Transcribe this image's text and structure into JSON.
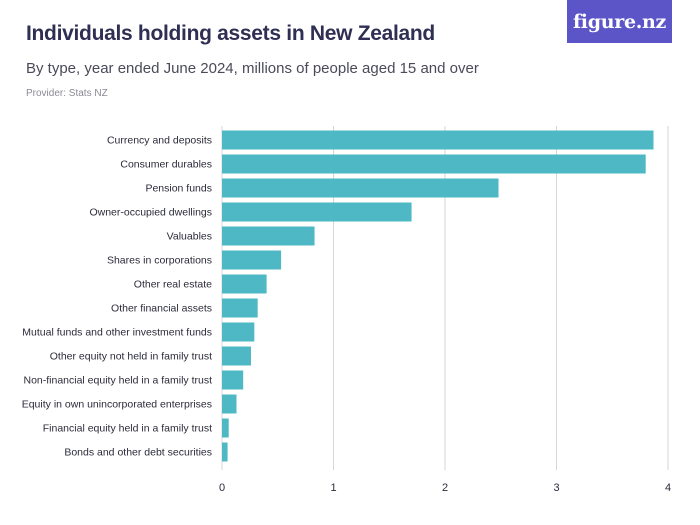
{
  "header": {
    "title": "Individuals holding assets in New Zealand",
    "subtitle": "By type, year ended June 2024, millions of people aged 15 and over",
    "provider": "Provider: Stats NZ"
  },
  "logo": {
    "text": "figure.nz",
    "color": "#5b55c7"
  },
  "chart_data": {
    "type": "bar",
    "orientation": "horizontal",
    "categories": [
      "Currency and deposits",
      "Consumer durables",
      "Pension funds",
      "Owner-occupied dwellings",
      "Valuables",
      "Shares in corporations",
      "Other real estate",
      "Other financial assets",
      "Mutual funds and other investment funds",
      "Other equity not held in family trust",
      "Non-financial equity held in a family trust",
      "Equity in own unincorporated enterprises",
      "Financial equity held in a family trust",
      "Bonds and other debt securities"
    ],
    "values": [
      3.87,
      3.8,
      2.48,
      1.7,
      0.83,
      0.53,
      0.4,
      0.32,
      0.29,
      0.26,
      0.19,
      0.13,
      0.06,
      0.05
    ],
    "xlim": [
      0,
      4
    ],
    "xticks": [
      0,
      1,
      2,
      3,
      4
    ],
    "xtick_labels": [
      "0",
      "1",
      "2",
      "3",
      "4"
    ],
    "grid": true,
    "bar_color": "#4fb8c5",
    "grid_color": "#d6d6dc"
  }
}
